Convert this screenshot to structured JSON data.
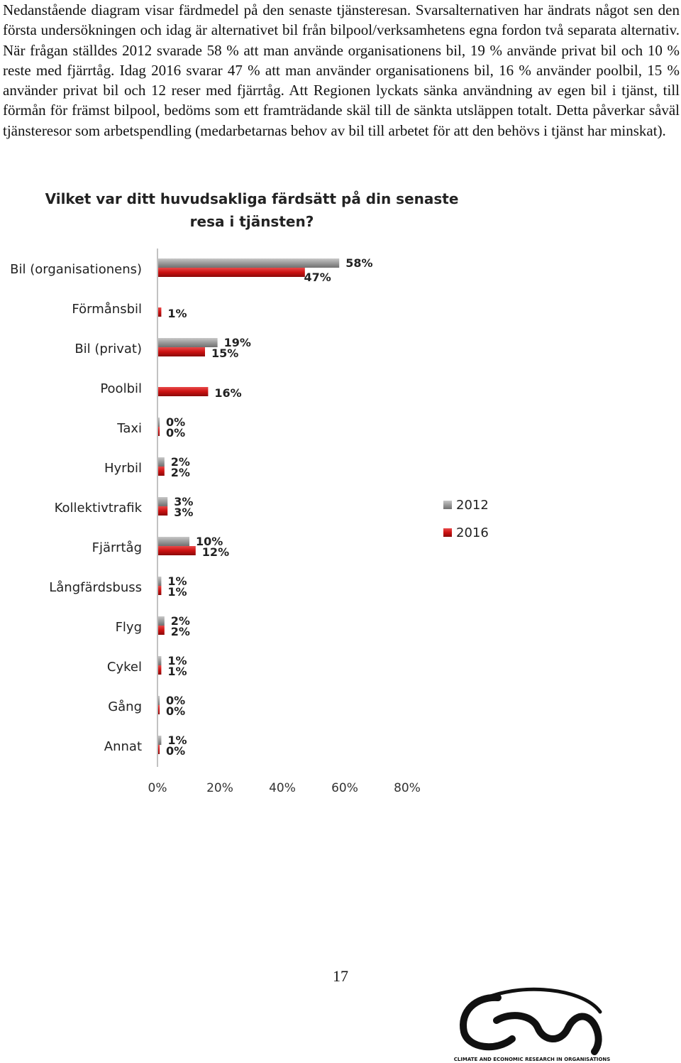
{
  "document": {
    "paragraph": "Nedanstående diagram visar färdmedel på den senaste tjänsteresan. Svarsalternativen har ändrats något sen den första undersökningen och idag är alternativet bil från bilpool/verksamhetens egna fordon två separata alternativ. När frågan ställdes 2012 svarade 58 % att man använde organisationens bil, 19 % använde privat bil och 10 % reste med fjärrtåg. Idag 2016 svarar 47 % att man använder organisationens bil, 16 % använder poolbil, 15 % använder privat bil och 12 reser med fjärrtåg. Att Regionen lyckats sänka användning av egen bil i tjänst, till förmån för främst bilpool, bedöms som ett framträdande skäl till de sänkta utsläppen totalt. Detta påverkar såväl tjänsteresor som arbetspendling (medarbetarnas behov av bil till arbetet för att den behövs i tjänst har minskat).",
    "page_number": "17",
    "logo_text": "CLIMATE AND ECONOMIC RESEARCH IN ORGANISATIONS"
  },
  "chart_data": {
    "type": "bar",
    "orientation": "horizontal",
    "title_lines": [
      "Vilket var ditt huvudsakliga färdsätt på din senaste",
      "resa i tjänsten?"
    ],
    "categories": [
      "Bil (organisationens)",
      "Förmånsbil",
      "Bil (privat)",
      "Poolbil",
      "Taxi",
      "Hyrbil",
      "Kollektivtrafik",
      "Fjärrtåg",
      "Långfärdsbuss",
      "Flyg",
      "Cykel",
      "Gång",
      "Annat"
    ],
    "series": [
      {
        "name": "2012",
        "color": "#9a9a9a",
        "values": [
          58,
          null,
          19,
          null,
          0,
          2,
          3,
          10,
          1,
          2,
          1,
          0,
          1
        ],
        "labels": [
          "58%",
          "",
          "19%",
          "",
          "0%",
          "2%",
          "3%",
          "10%",
          "1%",
          "2%",
          "1%",
          "0%",
          "1%"
        ]
      },
      {
        "name": "2016",
        "color": "#cc1111",
        "values": [
          47,
          1,
          15,
          16,
          0,
          2,
          3,
          12,
          1,
          2,
          1,
          0,
          0
        ],
        "labels": [
          "47%",
          "1%",
          "15%",
          "16%",
          "0%",
          "2%",
          "3%",
          "12%",
          "1%",
          "2%",
          "1%",
          "0%",
          "0%"
        ]
      }
    ],
    "xlim": [
      0,
      80
    ],
    "x_ticks": [
      "0%",
      "20%",
      "40%",
      "60%",
      "80%"
    ],
    "legend_position": "right"
  }
}
